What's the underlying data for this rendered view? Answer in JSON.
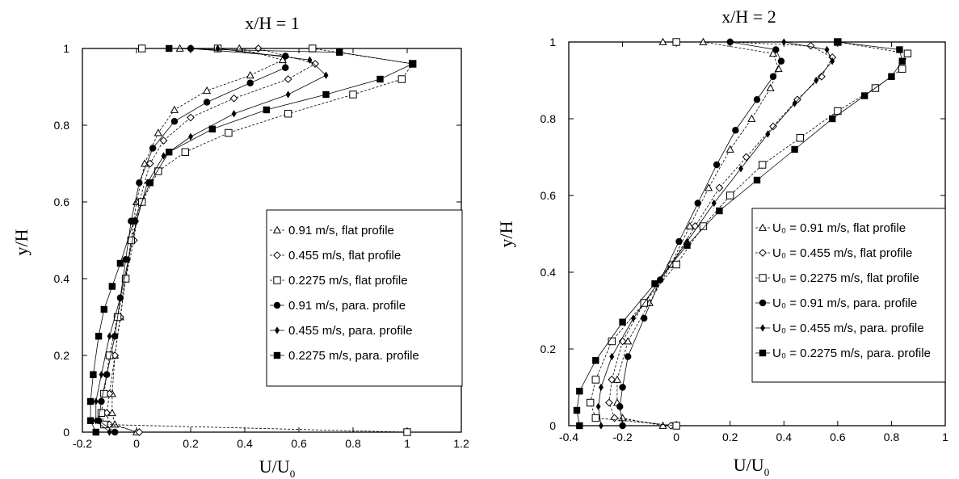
{
  "chart_data": [
    {
      "type": "line",
      "title": "x/H = 1",
      "xlabel": "U/U",
      "xlabel_sub": "0",
      "ylabel": "y/H",
      "xlim": [
        -0.2,
        1.2
      ],
      "ylim": [
        0,
        1
      ],
      "xticks": [
        "-0.2",
        "0",
        "0.2",
        "0.4",
        "0.6",
        "0.8",
        "1",
        "1.2"
      ],
      "yticks": [
        "0",
        "0.2",
        "0.4",
        "0.6",
        "0.8",
        "1"
      ],
      "legend_position": "center-right",
      "series": [
        {
          "name": "0.91 m/s, flat profile",
          "marker": "open-triangle",
          "x": [
            0.0,
            -0.08,
            -0.09,
            -0.09,
            -0.08,
            -0.06,
            -0.04,
            -0.02,
            0.0,
            0.03,
            0.08,
            0.14,
            0.26,
            0.42,
            0.54,
            0.38,
            0.16
          ],
          "y": [
            0.0,
            0.02,
            0.05,
            0.1,
            0.2,
            0.3,
            0.4,
            0.5,
            0.6,
            0.7,
            0.78,
            0.84,
            0.89,
            0.93,
            0.97,
            1.0,
            1.0
          ]
        },
        {
          "name": "0.455 m/s, flat profile",
          "marker": "open-diamond",
          "x": [
            0.01,
            -0.1,
            -0.11,
            -0.1,
            -0.08,
            -0.06,
            -0.04,
            -0.01,
            0.01,
            0.05,
            0.1,
            0.2,
            0.36,
            0.56,
            0.66,
            0.45,
            0.2
          ],
          "y": [
            0.0,
            0.02,
            0.05,
            0.1,
            0.2,
            0.3,
            0.4,
            0.5,
            0.6,
            0.7,
            0.76,
            0.82,
            0.87,
            0.92,
            0.96,
            1.0,
            1.0
          ]
        },
        {
          "name": "0.2275 m/s, flat profile",
          "marker": "open-square",
          "x": [
            1.0,
            -0.12,
            -0.13,
            -0.12,
            -0.1,
            -0.07,
            -0.04,
            -0.02,
            0.02,
            0.08,
            0.18,
            0.34,
            0.56,
            0.8,
            0.98,
            1.02,
            0.65,
            0.3,
            0.02
          ],
          "y": [
            0.0,
            0.02,
            0.05,
            0.1,
            0.2,
            0.3,
            0.4,
            0.5,
            0.6,
            0.68,
            0.73,
            0.78,
            0.83,
            0.88,
            0.92,
            0.96,
            1.0,
            1.0,
            1.0
          ]
        },
        {
          "name": "0.91 m/s, para. profile",
          "marker": "filled-circle",
          "x": [
            -0.08,
            -0.14,
            -0.13,
            -0.11,
            -0.08,
            -0.06,
            -0.04,
            -0.02,
            0.01,
            0.06,
            0.14,
            0.26,
            0.42,
            0.55,
            0.55,
            0.2
          ],
          "y": [
            0.0,
            0.03,
            0.08,
            0.15,
            0.25,
            0.35,
            0.45,
            0.55,
            0.65,
            0.74,
            0.81,
            0.86,
            0.91,
            0.95,
            0.98,
            1.0
          ]
        },
        {
          "name": "0.455 m/s, para. profile",
          "marker": "filled-diamond",
          "x": [
            -0.1,
            -0.15,
            -0.15,
            -0.13,
            -0.1,
            -0.06,
            -0.03,
            0.0,
            0.04,
            0.1,
            0.2,
            0.36,
            0.56,
            0.7,
            0.64,
            0.3
          ],
          "y": [
            0.0,
            0.03,
            0.08,
            0.15,
            0.25,
            0.35,
            0.45,
            0.55,
            0.65,
            0.72,
            0.77,
            0.83,
            0.88,
            0.93,
            0.97,
            1.0
          ]
        },
        {
          "name": "0.2275 m/s, para. profile",
          "marker": "filled-square",
          "x": [
            -0.15,
            -0.17,
            -0.17,
            -0.16,
            -0.14,
            -0.12,
            -0.09,
            -0.06,
            -0.01,
            0.05,
            0.12,
            0.28,
            0.48,
            0.7,
            0.9,
            1.02,
            0.75,
            0.12
          ],
          "y": [
            0.0,
            0.03,
            0.08,
            0.15,
            0.25,
            0.32,
            0.38,
            0.44,
            0.55,
            0.65,
            0.73,
            0.79,
            0.84,
            0.88,
            0.92,
            0.96,
            0.99,
            1.0
          ]
        }
      ]
    },
    {
      "type": "line",
      "title": "x/H = 2",
      "xlabel": "U/U",
      "xlabel_sub": "0",
      "ylabel": "y/H",
      "xlim": [
        -0.4,
        1
      ],
      "ylim": [
        0,
        1
      ],
      "xticks": [
        "-0.4",
        "-0.2",
        "0",
        "0.2",
        "0.4",
        "0.6",
        "0.8",
        "1"
      ],
      "yticks": [
        "0",
        "0.2",
        "0.4",
        "0.6",
        "0.8",
        "1"
      ],
      "legend_position": "center-right",
      "series": [
        {
          "name": "U₀ = 0.91 m/s, flat profile",
          "marker": "open-triangle",
          "x": [
            -0.05,
            -0.2,
            -0.22,
            -0.22,
            -0.18,
            -0.1,
            -0.02,
            0.05,
            0.12,
            0.2,
            0.28,
            0.35,
            0.38,
            0.36,
            0.1,
            -0.05
          ],
          "y": [
            0.0,
            0.02,
            0.06,
            0.12,
            0.22,
            0.32,
            0.42,
            0.52,
            0.62,
            0.72,
            0.8,
            0.88,
            0.93,
            0.97,
            1.0,
            1.0
          ]
        },
        {
          "name": "U₀ = 0.455 m/s, flat profile",
          "marker": "open-diamond",
          "x": [
            -0.02,
            -0.23,
            -0.25,
            -0.24,
            -0.2,
            -0.12,
            -0.02,
            0.07,
            0.16,
            0.26,
            0.36,
            0.45,
            0.54,
            0.58,
            0.5,
            0.2
          ],
          "y": [
            0.0,
            0.02,
            0.06,
            0.12,
            0.22,
            0.32,
            0.42,
            0.52,
            0.62,
            0.7,
            0.78,
            0.85,
            0.91,
            0.96,
            0.99,
            1.0
          ]
        },
        {
          "name": "U₀ = 0.2275 m/s, flat profile",
          "marker": "open-square",
          "x": [
            0.0,
            -0.3,
            -0.32,
            -0.3,
            -0.24,
            -0.12,
            0.0,
            0.1,
            0.2,
            0.32,
            0.46,
            0.6,
            0.74,
            0.84,
            0.86,
            0.6,
            0.0
          ],
          "y": [
            0.0,
            0.02,
            0.06,
            0.12,
            0.22,
            0.32,
            0.42,
            0.52,
            0.6,
            0.68,
            0.75,
            0.82,
            0.88,
            0.93,
            0.97,
            1.0,
            1.0
          ]
        },
        {
          "name": "U₀ = 0.91 m/s, para. profile",
          "marker": "filled-circle",
          "x": [
            -0.2,
            -0.21,
            -0.2,
            -0.18,
            -0.12,
            -0.06,
            0.01,
            0.08,
            0.15,
            0.22,
            0.3,
            0.36,
            0.39,
            0.37,
            0.2
          ],
          "y": [
            0.0,
            0.05,
            0.1,
            0.18,
            0.28,
            0.38,
            0.48,
            0.58,
            0.68,
            0.77,
            0.85,
            0.91,
            0.95,
            0.98,
            1.0
          ]
        },
        {
          "name": "U₀ = 0.455 m/s, para. profile",
          "marker": "filled-diamond",
          "x": [
            -0.28,
            -0.29,
            -0.28,
            -0.24,
            -0.16,
            -0.06,
            0.04,
            0.14,
            0.24,
            0.34,
            0.44,
            0.52,
            0.58,
            0.56,
            0.4
          ],
          "y": [
            0.0,
            0.05,
            0.1,
            0.18,
            0.28,
            0.38,
            0.48,
            0.58,
            0.67,
            0.76,
            0.84,
            0.9,
            0.95,
            0.98,
            1.0
          ]
        },
        {
          "name": "U₀ = 0.2275 m/s, para. profile",
          "marker": "filled-square",
          "x": [
            -0.36,
            -0.37,
            -0.36,
            -0.3,
            -0.2,
            -0.08,
            0.04,
            0.16,
            0.3,
            0.44,
            0.58,
            0.7,
            0.8,
            0.84,
            0.83,
            0.6
          ],
          "y": [
            0.0,
            0.04,
            0.09,
            0.17,
            0.27,
            0.37,
            0.47,
            0.56,
            0.64,
            0.72,
            0.8,
            0.86,
            0.91,
            0.95,
            0.98,
            1.0
          ]
        }
      ]
    }
  ]
}
